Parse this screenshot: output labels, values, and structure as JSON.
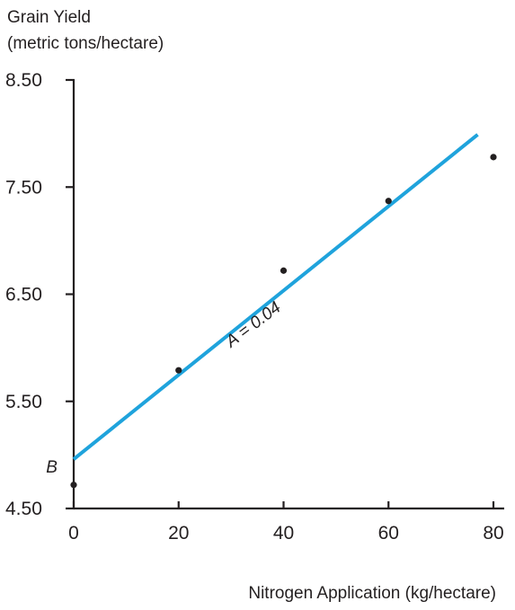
{
  "chart_data": {
    "type": "scatter",
    "title": "",
    "ylabel": [
      "Grain Yield",
      "(metric tons/hectare)"
    ],
    "xlabel": "Nitrogen Application (kg/hectare)",
    "xlim": [
      0,
      80
    ],
    "ylim": [
      4.5,
      8.5
    ],
    "x_ticks": [
      0,
      20,
      40,
      60,
      80
    ],
    "x_tick_labels": [
      "0",
      "20",
      "40",
      "60",
      "80"
    ],
    "y_ticks": [
      4.5,
      5.5,
      6.5,
      7.5,
      8.5
    ],
    "y_tick_labels": [
      "4.50",
      "5.50",
      "6.50",
      "7.50",
      "8.50"
    ],
    "grid": false,
    "series": [
      {
        "type": "scatter",
        "x": [
          0,
          20,
          40,
          60,
          80
        ],
        "y": [
          4.72,
          5.79,
          6.72,
          7.37,
          7.78
        ]
      },
      {
        "type": "line",
        "x": [
          0,
          77
        ],
        "y": [
          4.96,
          7.99
        ]
      }
    ],
    "annotations": [
      {
        "text": "A = 0.04",
        "x": 30,
        "y": 6.0,
        "rotation_deg": -37
      },
      {
        "text": "B",
        "x": -1.5,
        "y": 4.96
      }
    ],
    "colors": {
      "points": "#231f20",
      "fit_line": "#1fa3dc",
      "axes": "#231f20"
    }
  }
}
